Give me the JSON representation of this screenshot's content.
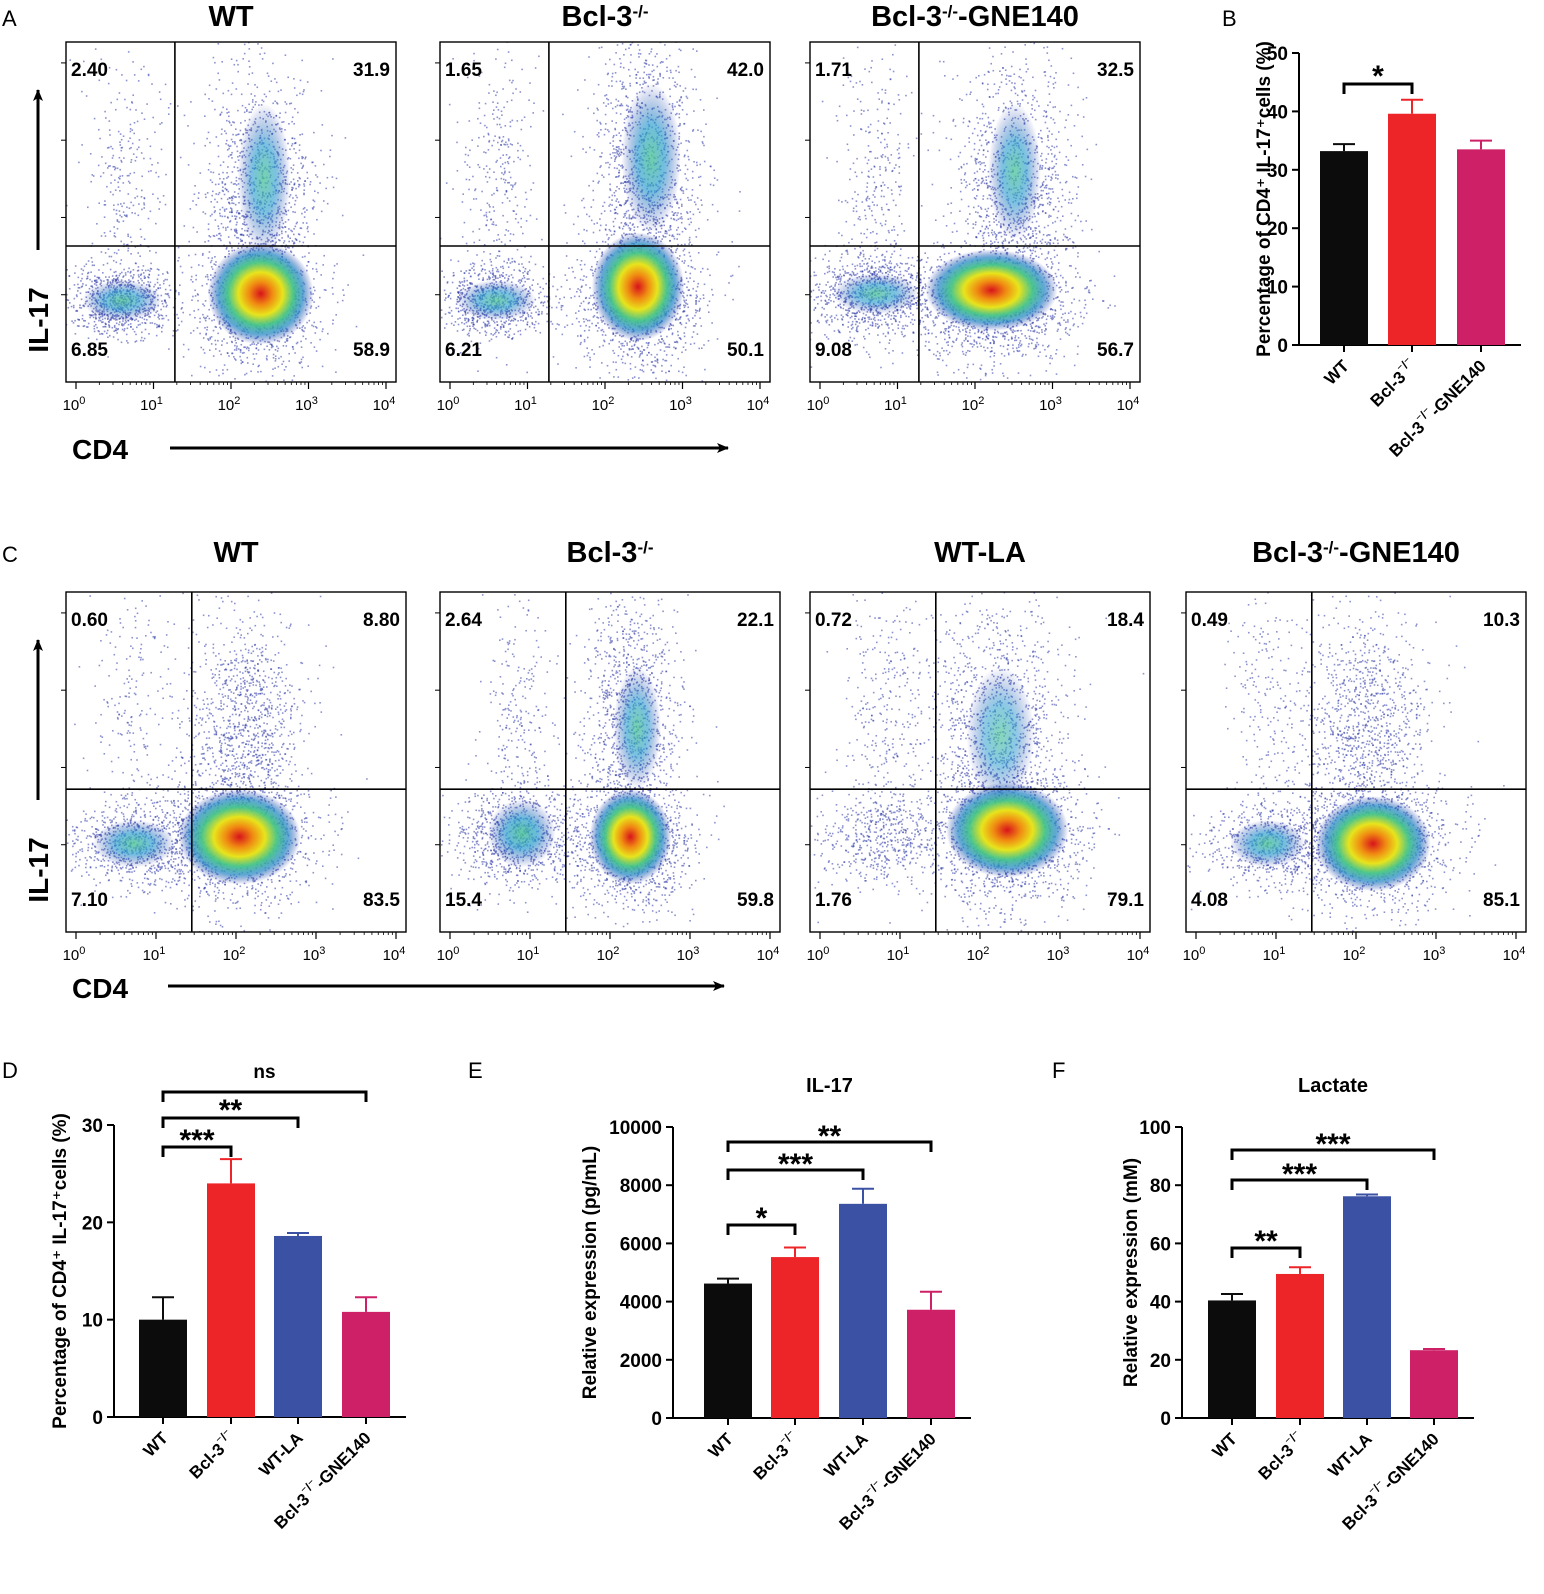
{
  "colors": {
    "wt": "#0c0c0c",
    "bcl3": "#ee2528",
    "wtla": "#3b52a4",
    "gne": "#cd2067"
  },
  "panel_a": {
    "letter": "A",
    "y_axis_label": "IL-17",
    "x_axis_label": "CD4",
    "plots": [
      {
        "title": "WT",
        "sup": "",
        "suffix": "",
        "q": [
          "2.40",
          "31.9",
          "6.85",
          "58.9"
        ]
      },
      {
        "title": "Bcl-3",
        "sup": "-/-",
        "suffix": "",
        "q": [
          "1.65",
          "42.0",
          "6.21",
          "50.1"
        ]
      },
      {
        "title": "Bcl-3",
        "sup": "-/-",
        "suffix": "-GNE140",
        "q": [
          "1.71",
          "32.5",
          "9.08",
          "56.7"
        ]
      }
    ]
  },
  "panel_c": {
    "letter": "C",
    "y_axis_label": "IL-17",
    "x_axis_label": "CD4",
    "plots": [
      {
        "title": "WT",
        "sup": "",
        "suffix": "",
        "q": [
          "0.60",
          "8.80",
          "7.10",
          "83.5"
        ]
      },
      {
        "title": "Bcl-3",
        "sup": "-/-",
        "suffix": "",
        "q": [
          "2.64",
          "22.1",
          "15.4",
          "59.8"
        ]
      },
      {
        "title": "WT-LA",
        "sup": "",
        "suffix": "",
        "q": [
          "0.72",
          "18.4",
          "1.76",
          "79.1"
        ]
      },
      {
        "title": "Bcl-3",
        "sup": "-/-",
        "suffix": "-GNE140",
        "q": [
          "0.49",
          "10.3",
          "4.08",
          "85.1"
        ]
      }
    ]
  },
  "flow_x_ticks": [
    "10",
    "10",
    "10",
    "10",
    "10"
  ],
  "flow_x_exps": [
    "0",
    "1",
    "2",
    "3",
    "4"
  ],
  "chart_data": [
    {
      "id": "B",
      "letter": "B",
      "type": "bar",
      "title": "",
      "ylabel": "Percentage of CD4⁺ IL-17⁺cells (%)",
      "ylim": [
        0,
        50
      ],
      "yticks": [
        0,
        10,
        20,
        30,
        40,
        50
      ],
      "categories": [
        "WT",
        "Bcl-3⁻/⁻",
        "Bcl-3⁻/⁻-GNE140"
      ],
      "values": [
        33.2,
        39.6,
        33.5
      ],
      "errors": [
        1.2,
        2.4,
        1.5
      ],
      "colors": [
        "#0c0c0c",
        "#ee2528",
        "#cd2067"
      ],
      "significance": [
        {
          "from": 0,
          "to": 1,
          "label": "*"
        }
      ]
    },
    {
      "id": "D",
      "letter": "D",
      "type": "bar",
      "title": "",
      "ylabel": "Percentage of CD4⁺ IL-17⁺cells (%)",
      "ylim": [
        0,
        30
      ],
      "yticks": [
        0,
        10,
        20,
        30
      ],
      "categories": [
        "WT",
        "Bcl-3⁻/⁻",
        "WT-LA",
        "Bcl-3⁻/⁻-GNE140"
      ],
      "values": [
        10.0,
        24.0,
        18.6,
        10.8
      ],
      "errors": [
        2.3,
        2.5,
        0.3,
        1.5
      ],
      "colors": [
        "#0c0c0c",
        "#ee2528",
        "#3b52a4",
        "#cd2067"
      ],
      "significance": [
        {
          "from": 0,
          "to": 1,
          "label": "***"
        },
        {
          "from": 0,
          "to": 2,
          "label": "**"
        },
        {
          "from": 0,
          "to": 3,
          "label": "ns"
        }
      ]
    },
    {
      "id": "E",
      "letter": "E",
      "type": "bar",
      "title": "IL-17",
      "ylabel": "Relative expression (pg/mL)",
      "ylim": [
        0,
        10000
      ],
      "yticks": [
        0,
        2000,
        4000,
        6000,
        8000,
        10000
      ],
      "categories": [
        "WT",
        "Bcl-3⁻/⁻",
        "WT-LA",
        "Bcl-3⁻/⁻-GNE140"
      ],
      "values": [
        4620,
        5530,
        7360,
        3720
      ],
      "errors": [
        170,
        330,
        520,
        620
      ],
      "colors": [
        "#0c0c0c",
        "#ee2528",
        "#3b52a4",
        "#cd2067"
      ],
      "significance": [
        {
          "from": 0,
          "to": 1,
          "label": "*"
        },
        {
          "from": 0,
          "to": 2,
          "label": "***"
        },
        {
          "from": 0,
          "to": 3,
          "label": "**"
        }
      ]
    },
    {
      "id": "F",
      "letter": "F",
      "type": "bar",
      "title": "Lactate",
      "ylabel": "Relative expression (mM)",
      "ylim": [
        0,
        100
      ],
      "yticks": [
        0,
        20,
        40,
        60,
        80,
        100
      ],
      "categories": [
        "WT",
        "Bcl-3⁻/⁻",
        "WT-LA",
        "Bcl-3⁻/⁻-GNE140"
      ],
      "values": [
        40.4,
        49.5,
        76.2,
        23.3
      ],
      "errors": [
        2.2,
        2.3,
        0.6,
        0.4
      ],
      "colors": [
        "#0c0c0c",
        "#ee2528",
        "#3b52a4",
        "#cd2067"
      ],
      "significance": [
        {
          "from": 0,
          "to": 1,
          "label": "**"
        },
        {
          "from": 0,
          "to": 2,
          "label": "***"
        },
        {
          "from": 0,
          "to": 3,
          "label": "***"
        }
      ]
    }
  ]
}
